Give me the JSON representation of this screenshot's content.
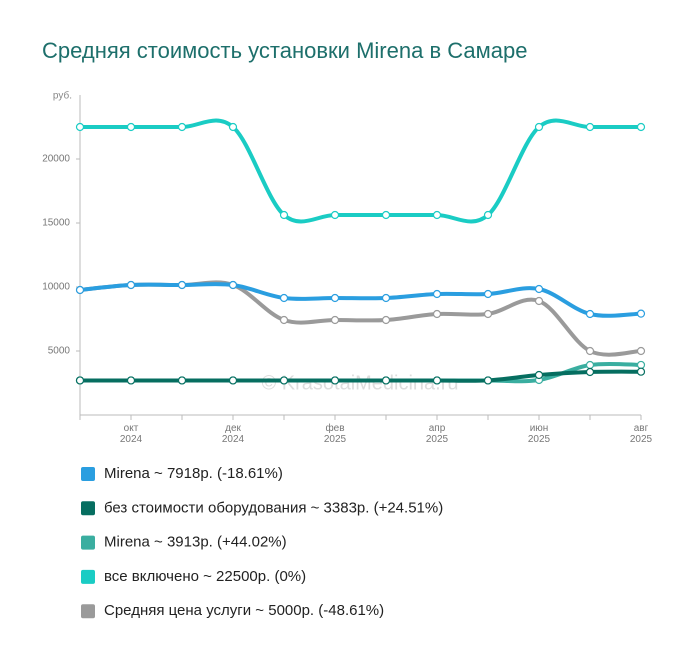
{
  "chart_data": {
    "type": "line",
    "title": "Средняя стоимость установки Mirena в Самаре",
    "ylabel": "руб.",
    "annotation": "© KrasotaiMedicina.ru",
    "categories": [
      null,
      "окт 2024",
      null,
      "дек 2024",
      null,
      "фев 2025",
      null,
      "апр 2025",
      null,
      "июн 2025",
      null,
      "авг 2025"
    ],
    "ylim": [
      0,
      25000
    ],
    "yticks": [
      5000,
      10000,
      15000,
      20000
    ],
    "grid": false,
    "series": [
      {
        "name": "Средняя цена услуги ~ 5000р. (-48.61%)",
        "color": "#9a9a9a",
        "values": [
          9766,
          10156,
          10156,
          10156,
          7422,
          7422,
          7422,
          7891,
          7891,
          8906,
          5000,
          5000
        ]
      },
      {
        "name": "Mirena ~ 7918р. (-18.61%)",
        "color": "#2a9ee0",
        "values": [
          9766,
          10156,
          10156,
          10156,
          9141,
          9141,
          9141,
          9453,
          9453,
          9844,
          7891,
          7918
        ]
      },
      {
        "name": "все включено ~ 22500р. (0%)",
        "color": "#1accc4",
        "values": [
          22500,
          22500,
          22500,
          22500,
          15625,
          15625,
          15625,
          15625,
          15625,
          22500,
          22500,
          22500
        ]
      },
      {
        "name": "Mirena ~ 3913р. (+44.02%)",
        "color": "#3aaea0",
        "values": [
          2700,
          2700,
          2700,
          2700,
          2700,
          2700,
          2700,
          2700,
          2700,
          2734,
          3906,
          3913
        ]
      },
      {
        "name": "без стоимости оборудования ~ 3383р. (+24.51%)",
        "color": "#066e60",
        "values": [
          2700,
          2700,
          2700,
          2700,
          2700,
          2700,
          2700,
          2700,
          2700,
          3125,
          3359,
          3383
        ]
      }
    ],
    "legend_order": [
      1,
      4,
      3,
      2,
      0
    ]
  }
}
